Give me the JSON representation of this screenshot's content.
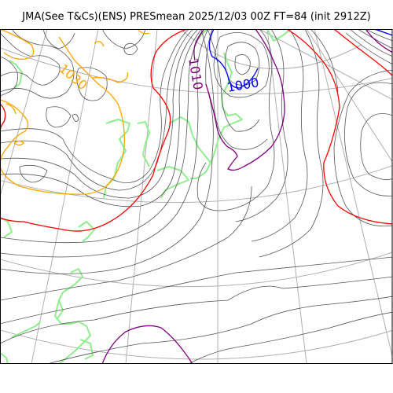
{
  "header": {
    "title": "JMA(See T&Cs)(ENS) PRESmean 2025/12/03 00Z FT=84 (init 2912Z)"
  },
  "map": {
    "contour_labels": {
      "orange": "1030",
      "purple": "1010",
      "blue": "1000"
    },
    "colors": {
      "frame": "#000000",
      "graticule": "#b0b0b0",
      "isobar": "#555555",
      "coast": "#90ee90",
      "orange_isobar": "#ffa500",
      "purple_isobar": "#800080",
      "blue_isobar": "#0000ff",
      "red_isobar": "#ff0000"
    }
  }
}
